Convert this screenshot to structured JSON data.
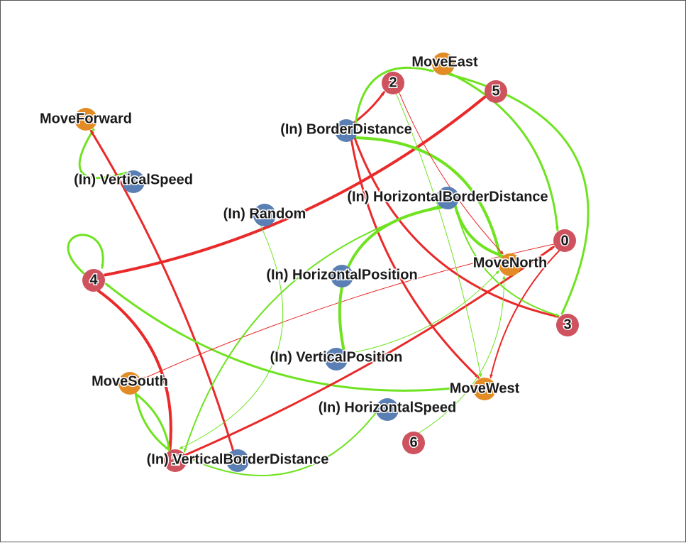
{
  "colors": {
    "input": "#5a7fb5",
    "output": "#e38b24",
    "hidden": "#cf525f",
    "positive": "#6fe320",
    "negative": "#ea2a2a"
  },
  "nodes": [
    {
      "id": "move_forward",
      "label": "MoveForward",
      "type": "output"
    },
    {
      "id": "vertical_speed",
      "label": "(In) VerticalSpeed",
      "type": "input"
    },
    {
      "id": "random",
      "label": "(In) Random",
      "type": "input"
    },
    {
      "id": "border_distance",
      "label": "(In) BorderDistance",
      "type": "input"
    },
    {
      "id": "move_east",
      "label": "MoveEast",
      "type": "output"
    },
    {
      "id": "h2",
      "label": "2",
      "type": "hidden"
    },
    {
      "id": "h5",
      "label": "5",
      "type": "hidden"
    },
    {
      "id": "h_border_dist",
      "label": "(In) HorizontalBorderDistance",
      "type": "input"
    },
    {
      "id": "h0",
      "label": "0",
      "type": "hidden"
    },
    {
      "id": "move_north",
      "label": "MoveNorth",
      "type": "output"
    },
    {
      "id": "h4",
      "label": "4",
      "type": "hidden"
    },
    {
      "id": "h_position",
      "label": "(In) HorizontalPosition",
      "type": "input"
    },
    {
      "id": "h3",
      "label": "3",
      "type": "hidden"
    },
    {
      "id": "v_position",
      "label": "(In) VerticalPosition",
      "type": "input"
    },
    {
      "id": "move_south",
      "label": "MoveSouth",
      "type": "output"
    },
    {
      "id": "move_west",
      "label": "MoveWest",
      "type": "output"
    },
    {
      "id": "h_speed",
      "label": "(In) HorizontalSpeed",
      "type": "input"
    },
    {
      "id": "h6",
      "label": "6",
      "type": "hidden"
    },
    {
      "id": "h1",
      "label": "1",
      "type": "hidden"
    },
    {
      "id": "v_border_dist",
      "label": "(In) VerticalBorderDistance",
      "type": "input"
    }
  ],
  "edges": [
    {
      "from": "vertical_speed",
      "to": "move_forward",
      "sign": "positive",
      "weight": 3
    },
    {
      "from": "v_border_dist",
      "to": "move_forward",
      "sign": "negative",
      "weight": 3
    },
    {
      "from": "h4",
      "to": "h4",
      "sign": "positive",
      "weight": 3
    },
    {
      "from": "h5",
      "to": "h4",
      "sign": "negative",
      "weight": 4
    },
    {
      "from": "h4",
      "to": "h1",
      "sign": "negative",
      "weight": 4
    },
    {
      "from": "move_west",
      "to": "h4",
      "sign": "positive",
      "weight": 3
    },
    {
      "from": "h1",
      "to": "h0",
      "sign": "negative",
      "weight": 3
    },
    {
      "from": "h0",
      "to": "move_south",
      "sign": "negative",
      "weight": 1
    },
    {
      "from": "h0",
      "to": "move_west",
      "sign": "negative",
      "weight": 2
    },
    {
      "from": "border_distance",
      "to": "h2",
      "sign": "negative",
      "weight": 3
    },
    {
      "from": "border_distance",
      "to": "move_east",
      "sign": "positive",
      "weight": 3
    },
    {
      "from": "border_distance",
      "to": "move_north",
      "sign": "positive",
      "weight": 4
    },
    {
      "from": "border_distance",
      "to": "h3",
      "sign": "negative",
      "weight": 3
    },
    {
      "from": "border_distance",
      "to": "move_west",
      "sign": "negative",
      "weight": 3
    },
    {
      "from": "h2",
      "to": "move_north",
      "sign": "negative",
      "weight": 1
    },
    {
      "from": "h2",
      "to": "move_west",
      "sign": "positive",
      "weight": 1
    },
    {
      "from": "move_east",
      "to": "h0",
      "sign": "positive",
      "weight": 3
    },
    {
      "from": "move_east",
      "to": "h3",
      "sign": "positive",
      "weight": 3
    },
    {
      "from": "h_border_dist",
      "to": "move_north",
      "sign": "positive",
      "weight": 4
    },
    {
      "from": "h_border_dist",
      "to": "h3",
      "sign": "positive",
      "weight": 2
    },
    {
      "from": "h_border_dist",
      "to": "v_position",
      "sign": "positive",
      "weight": 4
    },
    {
      "from": "h_border_dist",
      "to": "h1",
      "sign": "positive",
      "weight": 2
    },
    {
      "from": "random",
      "to": "h1",
      "sign": "positive",
      "weight": 1
    },
    {
      "from": "move_south",
      "to": "h1",
      "sign": "positive",
      "weight": 3
    },
    {
      "from": "h1",
      "to": "move_south",
      "sign": "positive",
      "weight": 3
    },
    {
      "from": "v_border_dist",
      "to": "h1",
      "sign": "negative",
      "weight": 3
    },
    {
      "from": "h_speed",
      "to": "h1",
      "sign": "positive",
      "weight": 2
    },
    {
      "from": "v_position",
      "to": "move_north",
      "sign": "positive",
      "weight": 1
    },
    {
      "from": "h6",
      "to": "move_north",
      "sign": "positive",
      "weight": 1
    }
  ]
}
